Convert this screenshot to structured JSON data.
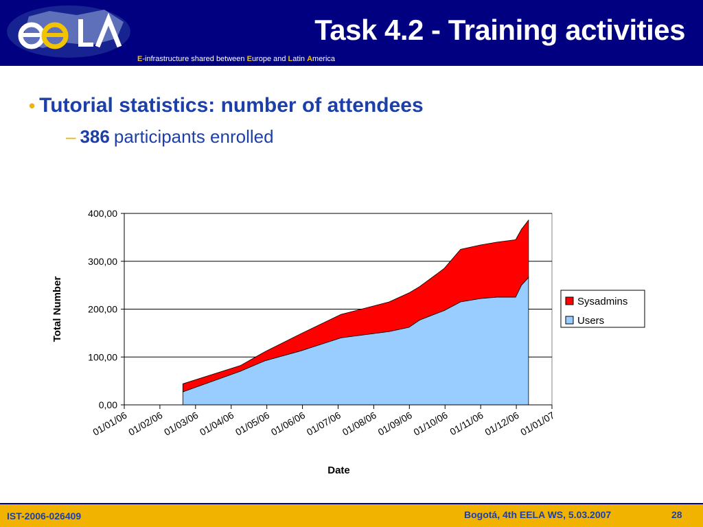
{
  "header": {
    "title": "Task 4.2 - Training activities",
    "subtitle": {
      "e_initial": "E",
      "part1": "-infrastructure shared between ",
      "eu_initial": "E",
      "part2": "urope and ",
      "la_initial": "L",
      "part3": "atin ",
      "am_initial": "A",
      "part4": "merica"
    },
    "logo_text": "ee LA"
  },
  "content": {
    "bullet": "Tutorial statistics: number of attendees",
    "sub_number": "386",
    "sub_text": "participants enrolled"
  },
  "chart_data": {
    "type": "area",
    "stacked": true,
    "xlabel": "Date",
    "ylabel": "Total Number",
    "ylim": [
      0,
      400
    ],
    "yticks": [
      "0,00",
      "100,00",
      "200,00",
      "300,00",
      "400,00"
    ],
    "xticks": [
      "01/01/06",
      "01/02/06",
      "01/03/06",
      "01/04/06",
      "01/05/06",
      "01/06/06",
      "01/07/06",
      "01/08/06",
      "01/09/06",
      "01/10/06",
      "01/11/06",
      "01/12/06",
      "01/01/07"
    ],
    "grid": true,
    "legend_position": "right",
    "x": [
      "2006-02-20",
      "2006-04-10",
      "2006-05-01",
      "2006-06-01",
      "2006-07-05",
      "2006-08-15",
      "2006-09-01",
      "2006-09-10",
      "2006-10-01",
      "2006-10-15",
      "2006-11-01",
      "2006-11-15",
      "2006-12-01",
      "2006-12-06",
      "2006-12-12"
    ],
    "series": [
      {
        "name": "Users",
        "color": "#99ccff",
        "values": [
          27,
          70,
          92,
          113,
          140,
          153,
          162,
          177,
          197,
          215,
          222,
          225,
          225,
          250,
          266
        ]
      },
      {
        "name": "Sysadmins",
        "color": "#ff0000",
        "values": [
          17,
          12,
          19,
          36,
          49,
          62,
          72,
          70,
          88,
          110,
          112,
          115,
          120,
          117,
          120
        ]
      }
    ]
  },
  "footer": {
    "left": "IST-2006-026409",
    "right": "Bogotá, 4th EELA WS, 5.03.2007",
    "page": "28"
  }
}
